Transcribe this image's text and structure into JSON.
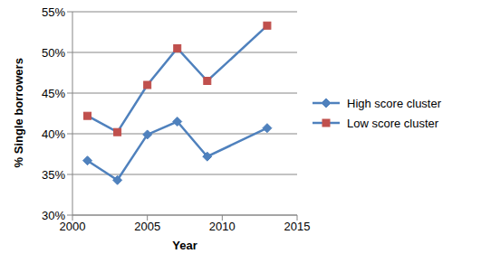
{
  "chart_data": {
    "type": "line",
    "x_label": "Year",
    "y_label": "% Single borrowers",
    "x": [
      2001,
      2003,
      2005,
      2007,
      2009,
      2013
    ],
    "series": [
      {
        "name": "High score cluster",
        "color": "#4f81bd",
        "marker": "diamond",
        "values": [
          36.7,
          34.3,
          39.9,
          41.5,
          37.2,
          40.7
        ]
      },
      {
        "name": "Low score cluster",
        "color": "#4f81bd",
        "marker": "square",
        "colors": [
          "#c0504d",
          "#c0504d",
          "#c0504d",
          "#c0504d",
          "#c0504d",
          "#c0504d"
        ],
        "values": [
          42.2,
          40.2,
          46.0,
          50.5,
          46.5,
          53.3
        ]
      }
    ],
    "xlim": [
      2000,
      2015
    ],
    "xticks": [
      2000,
      2005,
      2010,
      2015
    ],
    "ylim": [
      30,
      55
    ],
    "yticks": [
      {
        "value": 30,
        "label": "30%"
      },
      {
        "value": 35,
        "label": "35%"
      },
      {
        "value": 40,
        "label": "40%"
      },
      {
        "value": 45,
        "label": "45%"
      },
      {
        "value": 50,
        "label": "50%"
      },
      {
        "value": 55,
        "label": "55%"
      }
    ],
    "grid": true,
    "legend": "right"
  }
}
